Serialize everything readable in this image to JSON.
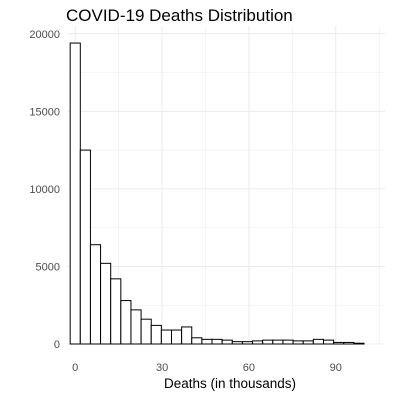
{
  "chart_data": {
    "type": "bar",
    "title": "COVID-19 Deaths Distribution",
    "xlabel": "Deaths (in thousands)",
    "ylabel": "",
    "xlim": [
      -2.5,
      107
    ],
    "ylim": [
      0,
      20500
    ],
    "x_ticks": [
      0,
      30,
      60,
      90
    ],
    "y_ticks": [
      0,
      5000,
      10000,
      15000,
      20000
    ],
    "bin_width": 3.5,
    "bin_start": -1.75,
    "values": [
      19400,
      12500,
      6400,
      5200,
      4200,
      2800,
      2200,
      1600,
      1200,
      900,
      900,
      1100,
      400,
      300,
      300,
      250,
      150,
      150,
      200,
      250,
      250,
      250,
      200,
      200,
      300,
      250,
      100,
      100,
      50
    ],
    "grid": true,
    "legend": "none",
    "bar_fill": "#ffffff",
    "bar_stroke": "#000000",
    "grid_color": "#ebebeb"
  }
}
